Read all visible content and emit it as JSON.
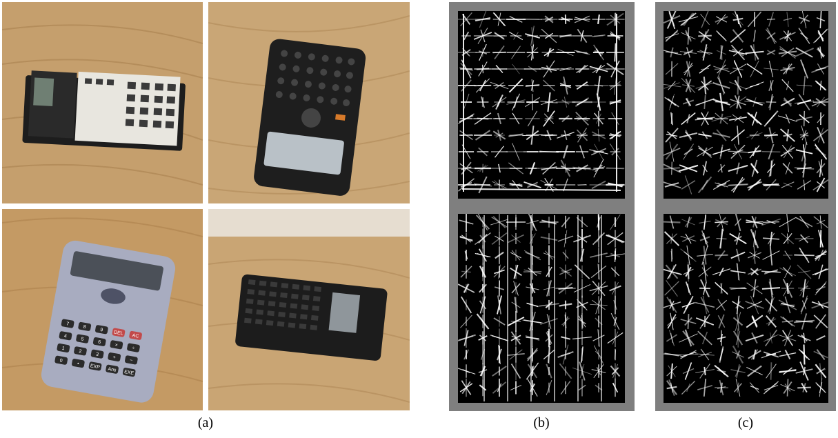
{
  "figure": {
    "panels": [
      {
        "id": "a",
        "caption": "(a)",
        "description_icons": [
          "calculator-photo-wide-lcd",
          "calculator-photo-dark-graphing",
          "calculator-photo-silver-scientific",
          "calculator-photo-dark-rotated"
        ]
      },
      {
        "id": "b",
        "caption": "(b)",
        "description_icons": [
          "hog-feature-visualization-top",
          "hog-feature-visualization-bottom"
        ]
      },
      {
        "id": "c",
        "caption": "(c)",
        "description_icons": [
          "hog-feature-visualization-top",
          "hog-feature-visualization-bottom"
        ]
      }
    ],
    "colors": {
      "wood_light": "#c9a676",
      "wood_dark": "#a9814f",
      "hog_frame": "#7f7f7f",
      "hog_background": "#000000",
      "hog_stroke": "#ffffff"
    },
    "calculator_keys": {
      "silver": [
        "7",
        "8",
        "9",
        "DEL",
        "AC",
        "4",
        "5",
        "6",
        "×",
        "÷",
        "1",
        "2",
        "3",
        "+",
        "−",
        "0",
        "•",
        "EXP",
        "Ans",
        "EXE"
      ]
    }
  }
}
